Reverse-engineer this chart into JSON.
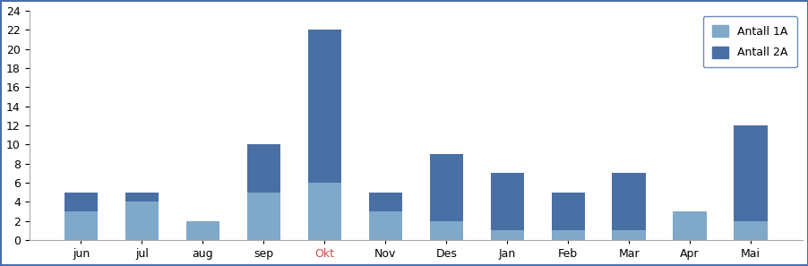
{
  "categories": [
    "jun",
    "jul",
    "aug",
    "sep",
    "Okt",
    "Nov",
    "Des",
    "Jan",
    "Feb",
    "Mar",
    "Apr",
    "Mai"
  ],
  "antall_1A": [
    3,
    4,
    2,
    5,
    6,
    3,
    2,
    1,
    1,
    1,
    3,
    2
  ],
  "antall_2A": [
    2,
    1,
    0,
    5,
    16,
    2,
    7,
    6,
    4,
    6,
    0,
    10
  ],
  "color_1A": "#7fa8c9",
  "color_2A": "#4a6fa5",
  "ylim": [
    0,
    24
  ],
  "yticks": [
    0,
    2,
    4,
    6,
    8,
    10,
    12,
    14,
    16,
    18,
    20,
    22,
    24
  ],
  "legend_labels": [
    "Antall 1A",
    "Antall 2A"
  ],
  "xlabel_color": "#c0504d",
  "bg_color": "#ffffff",
  "border_color": "#4a6fa5",
  "figsize": [
    9.03,
    2.97
  ],
  "dpi": 100
}
